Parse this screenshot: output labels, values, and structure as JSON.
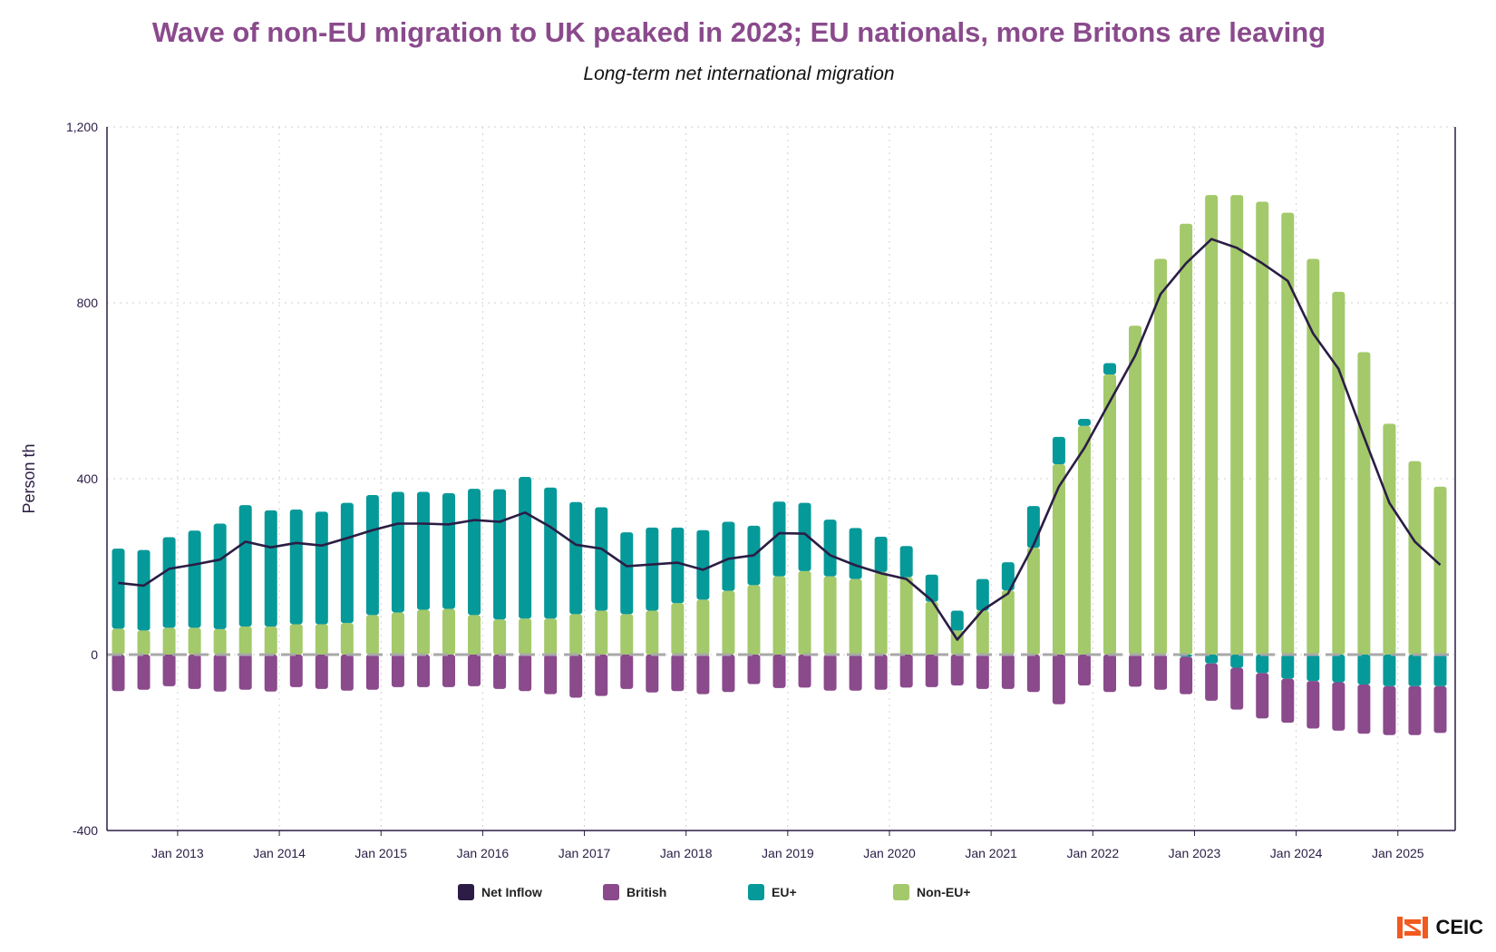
{
  "chart_data": {
    "type": "bar",
    "stacked": true,
    "title": "Wave of non-EU migration to UK peaked in 2023; EU nationals, more Britons are leaving",
    "subtitle": "Long-term net international migration",
    "ylabel": "Person th",
    "ylim": [
      -400,
      1200
    ],
    "yticks": [
      "-400",
      "0",
      "400",
      "800",
      "1,200"
    ],
    "xticks": [
      "Jan 2013",
      "Jan 2014",
      "Jan 2015",
      "Jan 2016",
      "Jan 2017",
      "Jan 2018",
      "Jan 2019",
      "Jan 2020",
      "Jan 2021",
      "Jan 2022",
      "Jan 2023",
      "Jan 2024",
      "Jan 2025"
    ],
    "grid": true,
    "legend_position": "bottom",
    "x": [
      "2012-06",
      "2012-09",
      "2012-12",
      "2013-03",
      "2013-06",
      "2013-09",
      "2013-12",
      "2014-03",
      "2014-06",
      "2014-09",
      "2014-12",
      "2015-03",
      "2015-06",
      "2015-09",
      "2015-12",
      "2016-03",
      "2016-06",
      "2016-09",
      "2016-12",
      "2017-03",
      "2017-06",
      "2017-09",
      "2017-12",
      "2018-03",
      "2018-06",
      "2018-09",
      "2018-12",
      "2019-03",
      "2019-06",
      "2019-09",
      "2019-12",
      "2020-03",
      "2020-06",
      "2020-09",
      "2020-12",
      "2021-03",
      "2021-06",
      "2021-09",
      "2021-12",
      "2022-03",
      "2022-06",
      "2022-09",
      "2022-12",
      "2023-03",
      "2023-06",
      "2023-09",
      "2023-12",
      "2024-03",
      "2024-06",
      "2024-09",
      "2024-12",
      "2025-03",
      "2025-06"
    ],
    "series": [
      {
        "name": "Net Inflow",
        "type": "line",
        "color": "#2b1d45",
        "values": [
          163,
          157,
          195,
          205,
          216,
          257,
          244,
          254,
          248,
          265,
          283,
          298,
          298,
          296,
          306,
          302,
          323,
          290,
          250,
          241,
          201,
          205,
          209,
          193,
          218,
          226,
          276,
          275,
          226,
          203,
          185,
          172,
          123,
          34,
          101,
          139,
          249,
          382,
          470,
          575,
          680,
          820,
          890,
          945,
          925,
          890,
          850,
          730,
          650,
          495,
          345,
          257,
          204
        ]
      },
      {
        "name": "British",
        "type": "bar",
        "color": "#8a4a8c",
        "values": [
          -83,
          -80,
          -72,
          -78,
          -84,
          -80,
          -84,
          -74,
          -78,
          -82,
          -80,
          -74,
          -74,
          -74,
          -72,
          -78,
          -83,
          -90,
          -98,
          -94,
          -78,
          -86,
          -83,
          -90,
          -85,
          -67,
          -76,
          -75,
          -82,
          -82,
          -80,
          -75,
          -74,
          -70,
          -78,
          -78,
          -85,
          -113,
          -70,
          -85,
          -73,
          -80,
          -85,
          -85,
          -95,
          -103,
          -100,
          -108,
          -110,
          -112,
          -111,
          -111,
          -106
        ]
      },
      {
        "name": "EU+",
        "type": "bar",
        "color": "#069999",
        "values": [
          182,
          183,
          206,
          221,
          240,
          276,
          264,
          261,
          256,
          273,
          273,
          274,
          268,
          263,
          287,
          296,
          322,
          298,
          255,
          235,
          186,
          189,
          172,
          158,
          157,
          135,
          170,
          155,
          129,
          116,
          80,
          71,
          62,
          45,
          72,
          64,
          95,
          62,
          16,
          26,
          0,
          0,
          -5,
          -20,
          -30,
          -42,
          -55,
          -60,
          -63,
          -68,
          -72,
          -72,
          -72
        ]
      },
      {
        "name": "Non-EU+",
        "type": "bar",
        "color": "#a3c96a",
        "values": [
          59,
          55,
          61,
          61,
          58,
          64,
          64,
          69,
          69,
          72,
          90,
          96,
          102,
          104,
          90,
          80,
          82,
          82,
          92,
          100,
          92,
          100,
          117,
          125,
          145,
          158,
          178,
          190,
          178,
          172,
          188,
          176,
          120,
          55,
          100,
          146,
          243,
          433,
          520,
          637,
          748,
          900,
          980,
          1045,
          1045,
          1030,
          1005,
          900,
          825,
          688,
          525,
          440,
          382
        ]
      }
    ]
  },
  "logo": {
    "text": "CEIC",
    "color": "#f25a1f"
  }
}
